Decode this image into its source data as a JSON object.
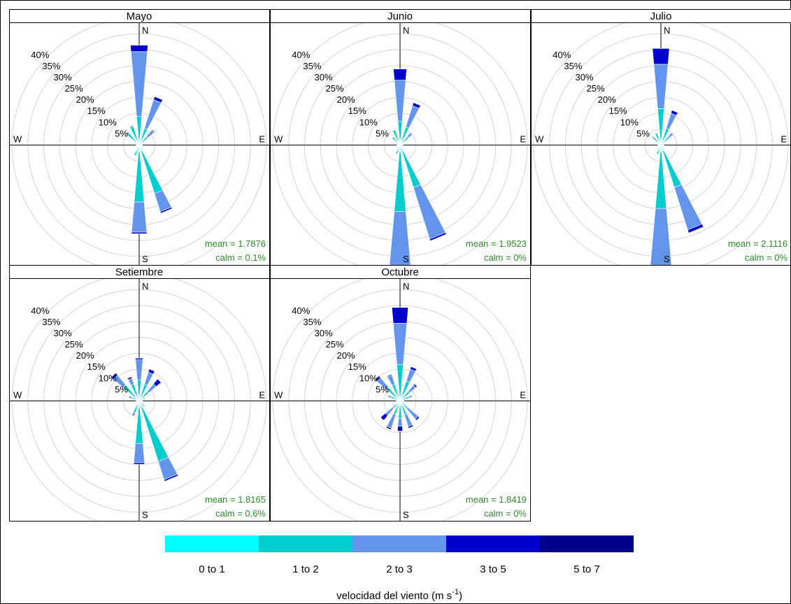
{
  "chart_data": {
    "type": "windrose",
    "directions": [
      "N",
      "NNE",
      "NE",
      "ENE",
      "E",
      "ESE",
      "SE",
      "SSE",
      "S",
      "SSW",
      "SW",
      "WSW",
      "W",
      "WNW",
      "NW",
      "NNW"
    ],
    "compass_labels": {
      "n": "N",
      "e": "E",
      "s": "S",
      "w": "W"
    },
    "radial_ticks": [
      5,
      10,
      15,
      20,
      25,
      30,
      35,
      40
    ],
    "radial_tick_suffix": "%",
    "rlim": [
      0,
      40
    ],
    "legend": {
      "title_prefix": "velocidad del viento (m s",
      "title_sup": "-1",
      "title_suffix": ")",
      "bins": [
        {
          "label": "0 to 1",
          "color": "#00FFFF"
        },
        {
          "label": "1 to 2",
          "color": "#00CDCD"
        },
        {
          "label": "2 to 3",
          "color": "#6495ED"
        },
        {
          "label": "3 to 5",
          "color": "#0000CD"
        },
        {
          "label": "5 to 7",
          "color": "#00008B"
        }
      ]
    },
    "panels": [
      {
        "title": "Mayo",
        "mean_text": "mean = 1.7876",
        "calm_text": "calm = 0.1%",
        "freq": [
          [
            1.5,
            7.5,
            20.5,
            2
          ],
          [
            1.5,
            4,
            9.5,
            1
          ],
          [
            1,
            2.5,
            2.5,
            0.3
          ],
          [
            1,
            0.5
          ],
          [
            0.8,
            0.2
          ],
          [
            0.8,
            0.2
          ],
          [
            1,
            0.5
          ],
          [
            2,
            14,
            6,
            0.5
          ],
          [
            2,
            16,
            9.5,
            0.5
          ],
          [
            2,
            1.5
          ],
          [
            1,
            0.5
          ],
          [
            0.8,
            0.2
          ],
          [
            0.8,
            0.2
          ],
          [
            1,
            0.5
          ],
          [
            1.5,
            3.5,
            0.5
          ],
          [
            1.5,
            4.5,
            0.5
          ]
        ]
      },
      {
        "title": "Junio",
        "mean_text": "mean = 1.9523",
        "calm_text": "calm = 0%",
        "freq": [
          [
            1.5,
            6,
            13,
            3.5
          ],
          [
            1.5,
            4.5,
            7,
            1
          ],
          [
            1,
            2.5,
            1.5,
            0.2
          ],
          [
            0.8,
            0.2
          ],
          [
            0.8,
            0.2
          ],
          [
            0.8,
            0.2
          ],
          [
            1,
            0.5
          ],
          [
            2,
            12,
            17,
            0.6
          ],
          [
            2,
            19,
            18
          ],
          [
            1.5,
            1.5
          ],
          [
            1,
            0.5
          ],
          [
            0.8,
            0.2
          ],
          [
            0.8,
            0.2
          ],
          [
            1,
            0.3
          ],
          [
            1.3,
            2
          ],
          [
            1.5,
            3.5
          ]
        ]
      },
      {
        "title": "Julio",
        "mean_text": "mean = 2.1116",
        "calm_text": "calm = 0%",
        "freq": [
          [
            1.5,
            10,
            14,
            5
          ],
          [
            1.5,
            4,
            5,
            1
          ],
          [
            1,
            2.5,
            1.5,
            0.2
          ],
          [
            0.8,
            0.2
          ],
          [
            0.8,
            0.2
          ],
          [
            0.8,
            0.2
          ],
          [
            1,
            0.5
          ],
          [
            2,
            12,
            14,
            1
          ],
          [
            2,
            18,
            20,
            0.3
          ],
          [
            1.5,
            1.5
          ],
          [
            1,
            0.5
          ],
          [
            0.8,
            0.2
          ],
          [
            0.8,
            0.2
          ],
          [
            1,
            0.3
          ],
          [
            1.3,
            2,
            0.5
          ],
          [
            1.5,
            2.5
          ]
        ]
      },
      {
        "title": "Setiembre",
        "mean_text": "mean = 1.8165",
        "calm_text": "calm = 0.6%",
        "freq": [
          [
            1.5,
            5,
            6.5,
            0.5
          ],
          [
            1.5,
            4,
            4,
            1
          ],
          [
            1,
            3,
            3,
            2
          ],
          [
            1,
            1
          ],
          [
            0.8,
            0.3
          ],
          [
            0.8,
            0.3
          ],
          [
            1,
            1,
            0.5
          ],
          [
            2,
            18,
            6,
            0.5
          ],
          [
            2,
            11.5,
            6,
            0.5
          ],
          [
            1.5,
            2.5,
            1
          ],
          [
            1,
            0.5
          ],
          [
            0.8,
            0.2
          ],
          [
            0.8,
            0.2
          ],
          [
            1,
            1.5,
            1
          ],
          [
            1.5,
            5,
            4,
            1
          ],
          [
            1.5,
            4,
            2,
            0.5
          ]
        ]
      },
      {
        "title": "Octubre",
        "mean_text": "mean = 1.8419",
        "calm_text": "calm = 0%",
        "freq": [
          [
            1.5,
            10,
            13,
            5
          ],
          [
            1.5,
            5,
            4,
            0.8
          ],
          [
            1,
            3,
            2.5,
            0.5
          ],
          [
            1,
            2,
            1
          ],
          [
            0.8,
            0.5
          ],
          [
            1,
            0.5
          ],
          [
            1,
            2,
            4.5,
            0.5
          ],
          [
            1.5,
            3,
            4,
            0.5
          ],
          [
            1.5,
            4,
            2.5,
            1.5
          ],
          [
            1.5,
            3,
            4.5,
            0.5
          ],
          [
            1,
            2,
            3,
            2
          ],
          [
            0.8,
            0.5
          ],
          [
            0.8,
            0.5
          ],
          [
            1,
            2,
            1
          ],
          [
            1.5,
            4,
            4,
            0.8
          ],
          [
            1.5,
            4,
            3,
            0.3
          ]
        ]
      }
    ]
  }
}
